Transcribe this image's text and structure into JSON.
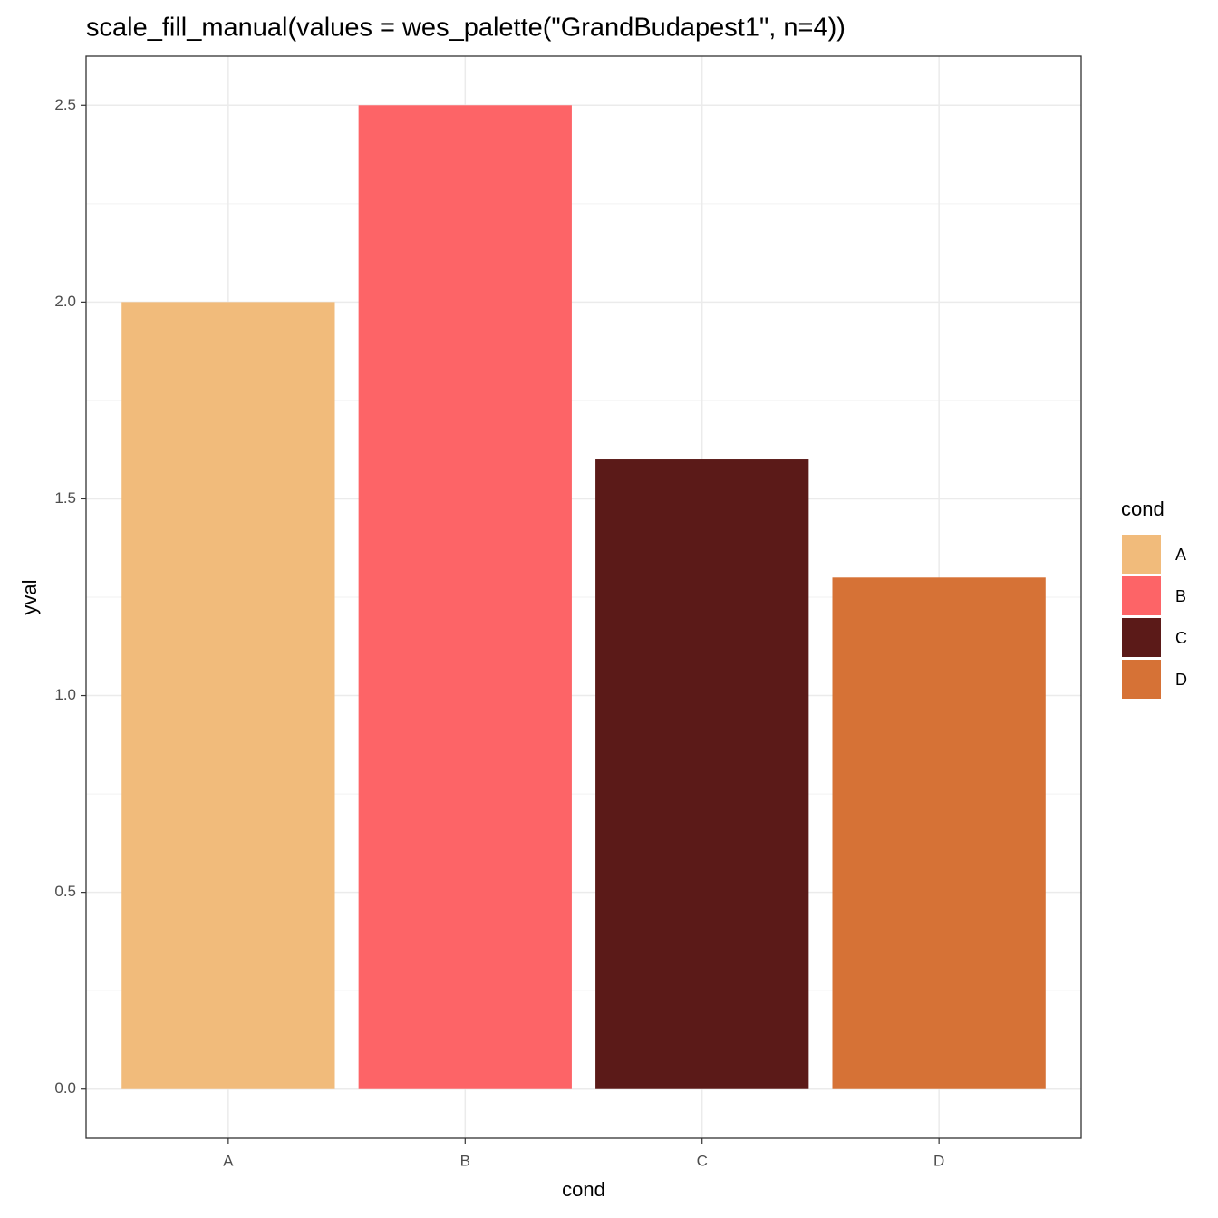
{
  "chart_data": {
    "type": "bar",
    "title": "scale_fill_manual(values = wes_palette(\"GrandBudapest1\", n=4))",
    "x_label": "cond",
    "y_label": "yval",
    "legend_title": "cond",
    "categories": [
      "A",
      "B",
      "C",
      "D"
    ],
    "values": [
      2.0,
      2.5,
      1.6,
      1.3
    ],
    "colors": [
      "#F1BB7B",
      "#FD6467",
      "#5B1A18",
      "#D67236"
    ],
    "ylim": [
      -0.125,
      2.625
    ],
    "yticks": [
      {
        "value": 0,
        "label": "0.0"
      },
      {
        "value": 0.5,
        "label": "0.5"
      },
      {
        "value": 1,
        "label": "1.0"
      },
      {
        "value": 1.5,
        "label": "1.5"
      },
      {
        "value": 2,
        "label": "2.0"
      },
      {
        "value": 2.5,
        "label": "2.5"
      }
    ],
    "grid": true,
    "legend": "right"
  }
}
